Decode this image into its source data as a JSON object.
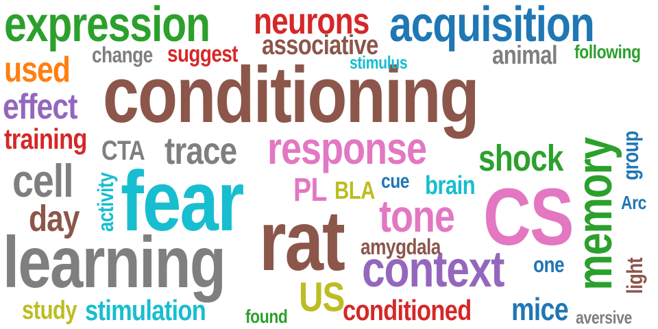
{
  "words": [
    {
      "id": "conditioning",
      "text": "conditioning",
      "color": "#8c564b"
    },
    {
      "id": "fear",
      "text": "fear",
      "color": "#17becf"
    },
    {
      "id": "rat",
      "text": "rat",
      "color": "#8c564b"
    },
    {
      "id": "cs",
      "text": "CS",
      "color": "#e377c2"
    },
    {
      "id": "memory",
      "text": "memory",
      "color": "#2ca02c"
    },
    {
      "id": "learning",
      "text": "learning",
      "color": "#7f7f7f"
    },
    {
      "id": "expression",
      "text": "expression",
      "color": "#2ca02c"
    },
    {
      "id": "acquisition",
      "text": "acquisition",
      "color": "#1f77b4"
    },
    {
      "id": "response",
      "text": "response",
      "color": "#e377c2"
    },
    {
      "id": "context",
      "text": "context",
      "color": "#9467bd"
    },
    {
      "id": "tone",
      "text": "tone",
      "color": "#e377c2"
    },
    {
      "id": "cell",
      "text": "cell",
      "color": "#7f7f7f"
    },
    {
      "id": "neurons",
      "text": "neurons",
      "color": "#d62728"
    },
    {
      "id": "used",
      "text": "used",
      "color": "#ff7f0e"
    },
    {
      "id": "effect",
      "text": "effect",
      "color": "#9467bd"
    },
    {
      "id": "shock",
      "text": "shock",
      "color": "#2ca02c"
    },
    {
      "id": "trace",
      "text": "trace",
      "color": "#7f7f7f"
    },
    {
      "id": "day",
      "text": "day",
      "color": "#8c564b"
    },
    {
      "id": "stimulation",
      "text": "stimulation",
      "color": "#17becf"
    },
    {
      "id": "training",
      "text": "training",
      "color": "#d62728"
    },
    {
      "id": "associative",
      "text": "associative",
      "color": "#8c564b"
    },
    {
      "id": "conditioned",
      "text": "conditioned",
      "color": "#d62728"
    },
    {
      "id": "us",
      "text": "US",
      "color": "#bcbd22"
    },
    {
      "id": "mice",
      "text": "mice",
      "color": "#1f77b4"
    },
    {
      "id": "animal",
      "text": "animal",
      "color": "#7f7f7f"
    },
    {
      "id": "cta",
      "text": "CTA",
      "color": "#7f7f7f"
    },
    {
      "id": "pl",
      "text": "PL",
      "color": "#e377c2"
    },
    {
      "id": "brain",
      "text": "brain",
      "color": "#17becf"
    },
    {
      "id": "amygdala",
      "text": "amygdala",
      "color": "#8c564b"
    },
    {
      "id": "study",
      "text": "study",
      "color": "#bcbd22"
    },
    {
      "id": "change",
      "text": "change",
      "color": "#7f7f7f"
    },
    {
      "id": "suggest",
      "text": "suggest",
      "color": "#d62728"
    },
    {
      "id": "following",
      "text": "following",
      "color": "#2ca02c"
    },
    {
      "id": "bla",
      "text": "BLA",
      "color": "#bcbd22"
    },
    {
      "id": "activity",
      "text": "activity",
      "color": "#17becf"
    },
    {
      "id": "one",
      "text": "one",
      "color": "#1f77b4"
    },
    {
      "id": "group",
      "text": "group",
      "color": "#1f77b4"
    },
    {
      "id": "light",
      "text": "light",
      "color": "#8c564b"
    },
    {
      "id": "stimulus",
      "text": "stimulus",
      "color": "#17becf"
    },
    {
      "id": "cue",
      "text": "cue",
      "color": "#1f77b4"
    },
    {
      "id": "arc",
      "text": "Arc",
      "color": "#1f77b4"
    },
    {
      "id": "found",
      "text": "found",
      "color": "#2ca02c"
    },
    {
      "id": "aversive",
      "text": "aversive",
      "color": "#7f7f7f"
    }
  ]
}
